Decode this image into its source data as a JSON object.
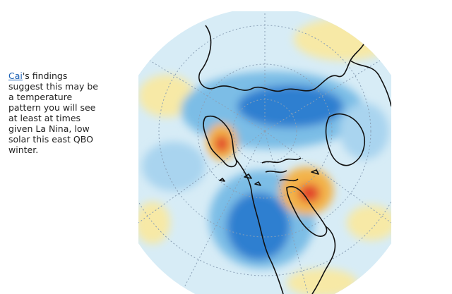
{
  "caption": {
    "link_text": "Cai",
    "body_text": "'s findings suggest this may be a temperature pattern you will see at least at times given La Nina, low solar this east QBO winter."
  },
  "map": {
    "colors": {
      "background_light": "#d7ecf6",
      "cold": "#7bbde6",
      "cold_strong": "#2f7fd0",
      "warm": "#f7e9a6",
      "warm_mid": "#f3b34a",
      "warm_strong": "#e2452a",
      "coast": "#111111",
      "grid": "#8aa0b6"
    }
  }
}
